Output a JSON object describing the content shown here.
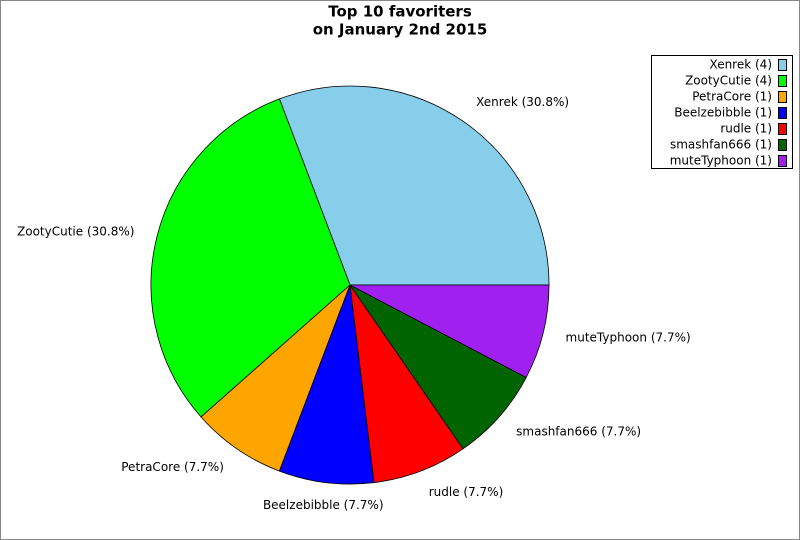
{
  "chart_data": {
    "type": "pie",
    "title": "Top 10 favoriters",
    "subtitle": "on January 2nd 2015",
    "categories": [
      "Xenrek",
      "ZootyCutie",
      "PetraCore",
      "Beelzebibble",
      "rudle",
      "smashfan666",
      "muteTyphoon"
    ],
    "values": [
      4,
      4,
      1,
      1,
      1,
      1,
      1
    ],
    "value_labels": [
      "Xenrek (4)",
      "ZootyCutie (4)",
      "PetraCore (1)",
      "Beelzebibble (1)",
      "rudle (1)",
      "smashfan666 (1)",
      "muteTyphoon (1)"
    ],
    "slice_labels": [
      "Xenrek (30.8%)",
      "ZootyCutie (30.8%)",
      "PetraCore (7.7%)",
      "Beelzebibble (7.7%)",
      "rudle (7.7%)",
      "smashfan666 (7.7%)",
      "muteTyphoon (7.7%)"
    ],
    "colors": [
      "#87ceeb",
      "#00ff00",
      "#ffa500",
      "#0000ff",
      "#ff0000",
      "#006400",
      "#a020f0"
    ],
    "legend": "top-right"
  }
}
